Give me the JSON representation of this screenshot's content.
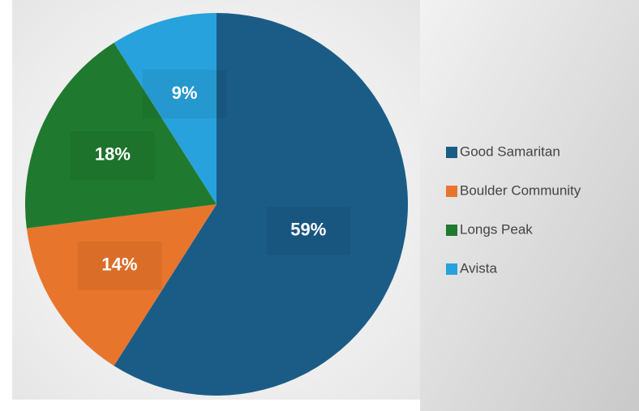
{
  "chart_data": {
    "type": "pie",
    "categories": [
      "Good Samaritan",
      "Boulder Community",
      "Longs Peak",
      "Avista"
    ],
    "values": [
      59,
      14,
      18,
      9
    ],
    "value_labels": [
      "59%",
      "14%",
      "18%",
      "9%"
    ],
    "colors": [
      "#1b5c87",
      "#e8752c",
      "#1f7a2f",
      "#27a2dc"
    ],
    "legend": "right"
  }
}
